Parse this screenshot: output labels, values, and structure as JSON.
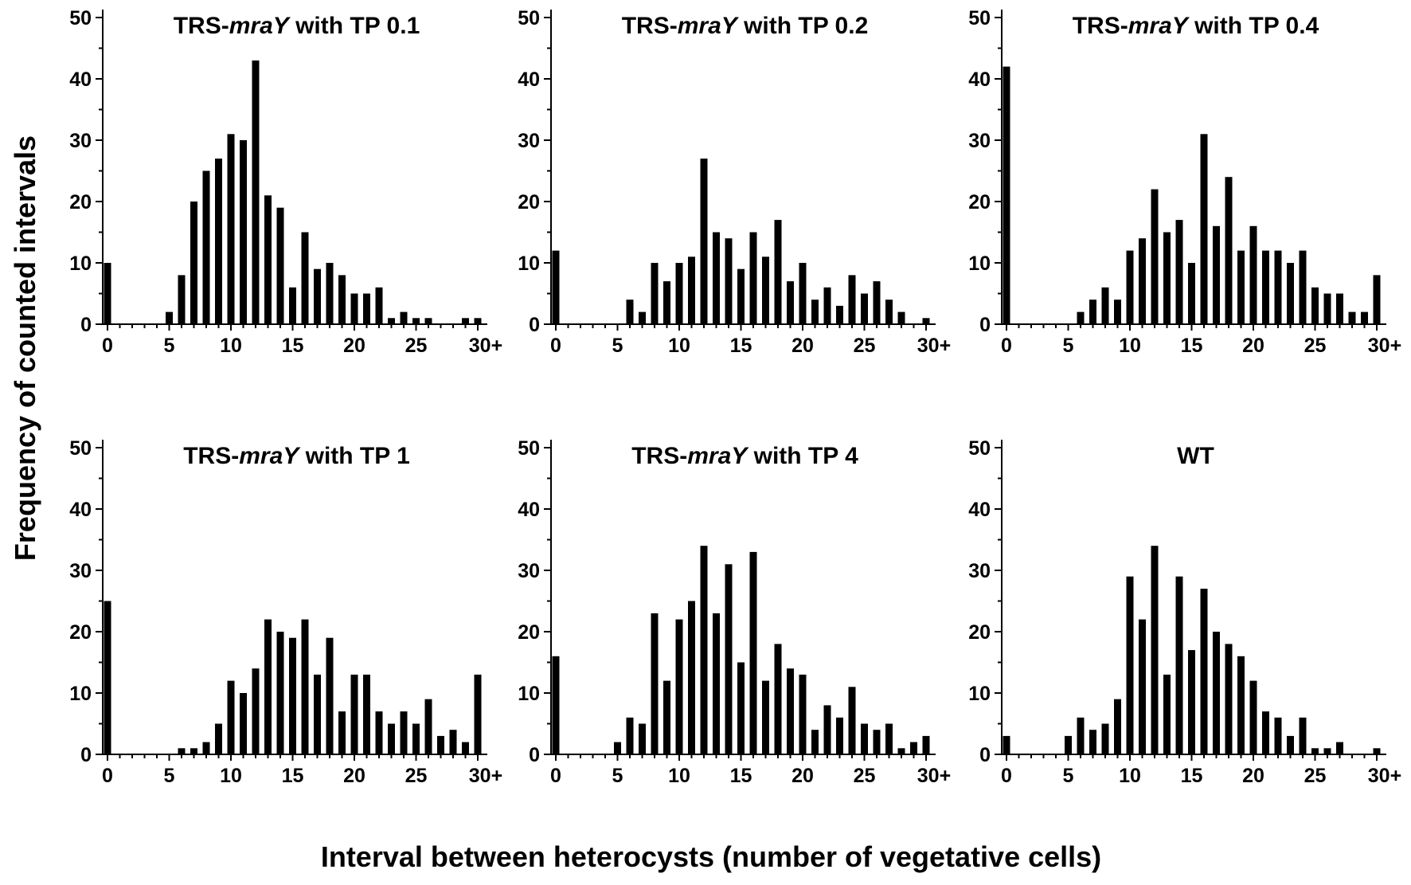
{
  "figure": {
    "ylabel": "Frequency of counted intervals",
    "xlabel": "Interval between heterocysts (number of vegetative cells)"
  },
  "chart_data": [
    {
      "type": "bar",
      "title": "TRS-mraY with TP 0.1",
      "title_parts": {
        "prefix": "TRS-",
        "italic": "mraY",
        "suffix": " with TP 0.1"
      },
      "categories": [
        0,
        1,
        2,
        3,
        4,
        5,
        6,
        7,
        8,
        9,
        10,
        11,
        12,
        13,
        14,
        15,
        16,
        17,
        18,
        19,
        20,
        21,
        22,
        23,
        24,
        25,
        26,
        27,
        28,
        29,
        30
      ],
      "values": [
        10,
        0,
        0,
        0,
        0,
        2,
        8,
        20,
        25,
        27,
        31,
        30,
        43,
        21,
        19,
        6,
        15,
        9,
        10,
        8,
        5,
        5,
        6,
        1,
        2,
        1,
        1,
        0,
        0,
        1,
        1
      ],
      "xticks": [
        0,
        5,
        10,
        15,
        20,
        25,
        30
      ],
      "xtick_labels": [
        "0",
        "5",
        "10",
        "15",
        "20",
        "25",
        "30+"
      ],
      "yticks": [
        0,
        10,
        20,
        30,
        40,
        50
      ],
      "ytick_labels": [
        "0",
        "10",
        "20",
        "30",
        "40",
        "50"
      ],
      "ylim": [
        0,
        50
      ],
      "xlabel": "",
      "ylabel": ""
    },
    {
      "type": "bar",
      "title": "TRS-mraY with TP 0.2",
      "title_parts": {
        "prefix": "TRS-",
        "italic": "mraY",
        "suffix": " with TP 0.2"
      },
      "categories": [
        0,
        1,
        2,
        3,
        4,
        5,
        6,
        7,
        8,
        9,
        10,
        11,
        12,
        13,
        14,
        15,
        16,
        17,
        18,
        19,
        20,
        21,
        22,
        23,
        24,
        25,
        26,
        27,
        28,
        29,
        30
      ],
      "values": [
        12,
        0,
        0,
        0,
        0,
        0,
        4,
        2,
        10,
        7,
        10,
        11,
        27,
        15,
        14,
        9,
        15,
        11,
        17,
        7,
        10,
        4,
        6,
        3,
        8,
        5,
        7,
        4,
        2,
        0,
        1
      ],
      "xticks": [
        0,
        5,
        10,
        15,
        20,
        25,
        30
      ],
      "xtick_labels": [
        "0",
        "5",
        "10",
        "15",
        "20",
        "25",
        "30+"
      ],
      "yticks": [
        0,
        10,
        20,
        30,
        40,
        50
      ],
      "ytick_labels": [
        "0",
        "10",
        "20",
        "30",
        "40",
        "50"
      ],
      "ylim": [
        0,
        50
      ],
      "xlabel": "",
      "ylabel": ""
    },
    {
      "type": "bar",
      "title": "TRS-mraY with TP 0.4",
      "title_parts": {
        "prefix": "TRS-",
        "italic": "mraY",
        "suffix": " with TP 0.4"
      },
      "categories": [
        0,
        1,
        2,
        3,
        4,
        5,
        6,
        7,
        8,
        9,
        10,
        11,
        12,
        13,
        14,
        15,
        16,
        17,
        18,
        19,
        20,
        21,
        22,
        23,
        24,
        25,
        26,
        27,
        28,
        29,
        30
      ],
      "values": [
        42,
        0,
        0,
        0,
        0,
        0,
        2,
        4,
        6,
        4,
        12,
        14,
        22,
        15,
        17,
        10,
        31,
        16,
        24,
        12,
        16,
        12,
        12,
        10,
        12,
        6,
        5,
        5,
        2,
        2,
        8
      ],
      "xticks": [
        0,
        5,
        10,
        15,
        20,
        25,
        30
      ],
      "xtick_labels": [
        "0",
        "5",
        "10",
        "15",
        "20",
        "25",
        "30+"
      ],
      "yticks": [
        0,
        10,
        20,
        30,
        40,
        50
      ],
      "ytick_labels": [
        "0",
        "10",
        "20",
        "30",
        "40",
        "50"
      ],
      "ylim": [
        0,
        50
      ],
      "xlabel": "",
      "ylabel": ""
    },
    {
      "type": "bar",
      "title": "TRS-mraY with TP 1",
      "title_parts": {
        "prefix": "TRS-",
        "italic": "mraY",
        "suffix": " with TP 1"
      },
      "categories": [
        0,
        1,
        2,
        3,
        4,
        5,
        6,
        7,
        8,
        9,
        10,
        11,
        12,
        13,
        14,
        15,
        16,
        17,
        18,
        19,
        20,
        21,
        22,
        23,
        24,
        25,
        26,
        27,
        28,
        29,
        30
      ],
      "values": [
        25,
        0,
        0,
        0,
        0,
        0,
        1,
        1,
        2,
        5,
        12,
        10,
        14,
        22,
        20,
        19,
        22,
        13,
        19,
        7,
        13,
        13,
        7,
        5,
        7,
        5,
        9,
        3,
        4,
        2,
        13
      ],
      "xticks": [
        0,
        5,
        10,
        15,
        20,
        25,
        30
      ],
      "xtick_labels": [
        "0",
        "5",
        "10",
        "15",
        "20",
        "25",
        "30+"
      ],
      "yticks": [
        0,
        10,
        20,
        30,
        40,
        50
      ],
      "ytick_labels": [
        "0",
        "10",
        "20",
        "30",
        "40",
        "50"
      ],
      "ylim": [
        0,
        50
      ],
      "xlabel": "",
      "ylabel": ""
    },
    {
      "type": "bar",
      "title": "TRS-mraY with TP 4",
      "title_parts": {
        "prefix": "TRS-",
        "italic": "mraY",
        "suffix": " with TP 4"
      },
      "categories": [
        0,
        1,
        2,
        3,
        4,
        5,
        6,
        7,
        8,
        9,
        10,
        11,
        12,
        13,
        14,
        15,
        16,
        17,
        18,
        19,
        20,
        21,
        22,
        23,
        24,
        25,
        26,
        27,
        28,
        29,
        30
      ],
      "values": [
        16,
        0,
        0,
        0,
        0,
        2,
        6,
        5,
        23,
        12,
        22,
        25,
        34,
        23,
        31,
        15,
        33,
        12,
        18,
        14,
        13,
        4,
        8,
        6,
        11,
        5,
        4,
        5,
        1,
        2,
        3
      ],
      "xticks": [
        0,
        5,
        10,
        15,
        20,
        25,
        30
      ],
      "xtick_labels": [
        "0",
        "5",
        "10",
        "15",
        "20",
        "25",
        "30+"
      ],
      "yticks": [
        0,
        10,
        20,
        30,
        40,
        50
      ],
      "ytick_labels": [
        "0",
        "10",
        "20",
        "30",
        "40",
        "50"
      ],
      "ylim": [
        0,
        50
      ],
      "xlabel": "",
      "ylabel": ""
    },
    {
      "type": "bar",
      "title": "WT",
      "title_parts": {
        "prefix": "WT",
        "italic": "",
        "suffix": ""
      },
      "categories": [
        0,
        1,
        2,
        3,
        4,
        5,
        6,
        7,
        8,
        9,
        10,
        11,
        12,
        13,
        14,
        15,
        16,
        17,
        18,
        19,
        20,
        21,
        22,
        23,
        24,
        25,
        26,
        27,
        28,
        29,
        30
      ],
      "values": [
        3,
        0,
        0,
        0,
        0,
        3,
        6,
        4,
        5,
        9,
        29,
        22,
        34,
        13,
        29,
        17,
        27,
        20,
        18,
        16,
        12,
        7,
        6,
        3,
        6,
        1,
        1,
        2,
        0,
        0,
        1
      ],
      "xticks": [
        0,
        5,
        10,
        15,
        20,
        25,
        30
      ],
      "xtick_labels": [
        "0",
        "5",
        "10",
        "15",
        "20",
        "25",
        "30+"
      ],
      "yticks": [
        0,
        10,
        20,
        30,
        40,
        50
      ],
      "ytick_labels": [
        "0",
        "10",
        "20",
        "30",
        "40",
        "50"
      ],
      "ylim": [
        0,
        50
      ],
      "xlabel": "",
      "ylabel": ""
    }
  ]
}
